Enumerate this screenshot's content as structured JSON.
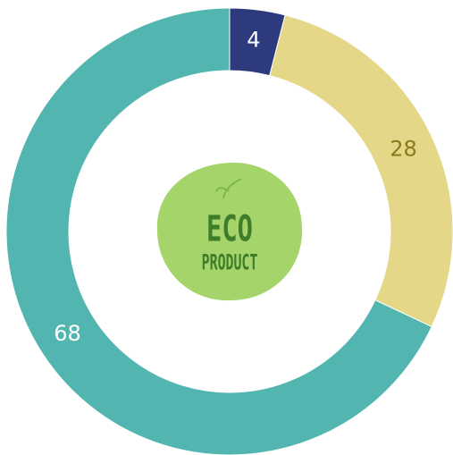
{
  "chart_data": {
    "type": "donut",
    "values": [
      4,
      28,
      68
    ],
    "colors": [
      "#2e3a7e",
      "#e5d788",
      "#52b5b0"
    ],
    "label_colors": [
      "#ffffff",
      "#8a7a1e",
      "#ffffff"
    ],
    "center_text": [
      "ECO",
      "PRODUCT"
    ]
  }
}
